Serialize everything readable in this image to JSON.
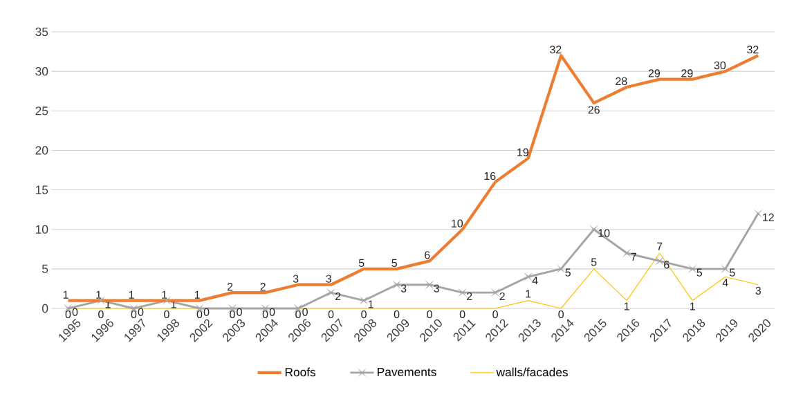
{
  "chart_data": {
    "type": "line",
    "categories": [
      "1995",
      "1996",
      "1997",
      "1998",
      "2002",
      "2003",
      "2004",
      "2006",
      "2007",
      "2008",
      "2009",
      "2010",
      "2011",
      "2012",
      "2013",
      "2014",
      "2015",
      "2016",
      "2017",
      "2018",
      "2019",
      "2020"
    ],
    "series": [
      {
        "name": "Roofs",
        "color": "#ed7d31",
        "marker": "none",
        "values": [
          1,
          1,
          1,
          1,
          1,
          2,
          2,
          3,
          3,
          5,
          5,
          6,
          10,
          16,
          19,
          32,
          26,
          28,
          29,
          29,
          30,
          32
        ]
      },
      {
        "name": "Pavements",
        "color": "#a5a5a5",
        "marker": "cross",
        "values": [
          0,
          1,
          0,
          1,
          0,
          0,
          0,
          0,
          2,
          1,
          3,
          3,
          2,
          2,
          4,
          5,
          10,
          7,
          6,
          5,
          5,
          12
        ]
      },
      {
        "name": "walls/facades",
        "color": "#ffc000",
        "marker": "none",
        "values": [
          0,
          0,
          0,
          0,
          0,
          0,
          0,
          0,
          0,
          0,
          0,
          0,
          0,
          0,
          1,
          0,
          5,
          1,
          7,
          1,
          4,
          3
        ]
      }
    ],
    "ylim": [
      0,
      35
    ],
    "yticks": [
      0,
      5,
      10,
      15,
      20,
      25,
      30,
      35
    ],
    "grid": "y",
    "legend": "bottom",
    "data_labels": true
  }
}
